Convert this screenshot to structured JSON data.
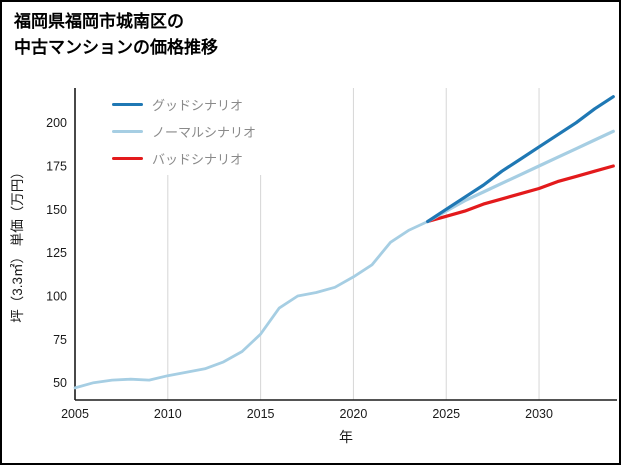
{
  "chart_data": {
    "type": "line",
    "title": "福岡県福岡市城南区の中古マンションの価格推移",
    "title_lines": [
      "福岡県福岡市城南区の",
      "中古マンションの価格推移"
    ],
    "xlabel": "年",
    "ylabel": "坪（3.3㎡） 単価（万円）",
    "xlim": [
      2005,
      2034.2
    ],
    "ylim": [
      40,
      220
    ],
    "xticks": [
      2005,
      2010,
      2015,
      2020,
      2025,
      2030
    ],
    "yticks": [
      50,
      75,
      100,
      125,
      150,
      175,
      200
    ],
    "grid": "vertical-only",
    "legend_position": "top-left-inside",
    "colors": {
      "grid": "#d6d6d6",
      "axis": "#1a1a1a",
      "tick": "#1a1a1a",
      "legend_text": "#8a8a8a",
      "good": "#1f78b4",
      "normal": "#a6cee3",
      "bad": "#e31a1c"
    },
    "series": [
      {
        "id": "historical",
        "name": "historical",
        "color": "#a6cee3",
        "width": 2.8,
        "x": [
          2005,
          2006,
          2007,
          2008,
          2009,
          2010,
          2011,
          2012,
          2013,
          2014,
          2015,
          2016,
          2017,
          2018,
          2019,
          2020,
          2021,
          2022,
          2023,
          2024
        ],
        "values": [
          47,
          50,
          51.5,
          52,
          51.5,
          54,
          56,
          58,
          62,
          68,
          78,
          93,
          100,
          102,
          105,
          111,
          118,
          131,
          138,
          143
        ]
      },
      {
        "id": "bad",
        "name": "バッドシナリオ",
        "color": "#e31a1c",
        "width": 3.2,
        "x": [
          2024,
          2025,
          2026,
          2027,
          2028,
          2029,
          2030,
          2031,
          2032,
          2033,
          2034
        ],
        "values": [
          143,
          146,
          149,
          153,
          156,
          159,
          162,
          166,
          169,
          172,
          175
        ]
      },
      {
        "id": "normal",
        "name": "ノーマルシナリオ",
        "color": "#a6cee3",
        "width": 3.2,
        "x": [
          2024,
          2025,
          2026,
          2027,
          2028,
          2029,
          2030,
          2031,
          2032,
          2033,
          2034
        ],
        "values": [
          143,
          149,
          155,
          160,
          165,
          170,
          175,
          180,
          185,
          190,
          195
        ]
      },
      {
        "id": "good",
        "name": "グッドシナリオ",
        "color": "#1f78b4",
        "width": 3.2,
        "x": [
          2024,
          2025,
          2026,
          2027,
          2028,
          2029,
          2030,
          2031,
          2032,
          2033,
          2034
        ],
        "values": [
          143,
          150,
          157,
          164,
          172,
          179,
          186,
          193,
          200,
          208,
          215
        ]
      }
    ],
    "legend": [
      {
        "label": "グッドシナリオ",
        "color": "#1f78b4"
      },
      {
        "label": "ノーマルシナリオ",
        "color": "#a6cee3"
      },
      {
        "label": "バッドシナリオ",
        "color": "#e31a1c"
      }
    ]
  }
}
